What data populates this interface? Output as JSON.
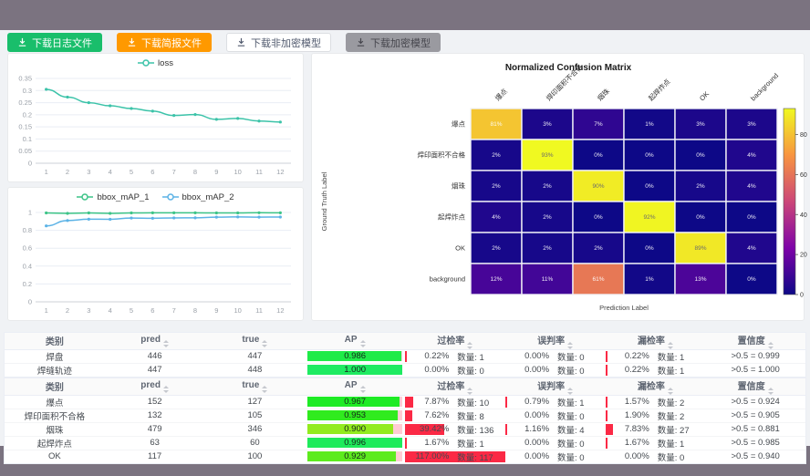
{
  "theme": {
    "top_band": "#7b7380",
    "content_bg": "#f0f2f5",
    "rate_bar_red": "#fb2945",
    "ap_track_pink": "#ffccd4"
  },
  "toolbar": {
    "buttons": [
      {
        "label": "下载日志文件",
        "icon": "download-icon",
        "bg": "#19be6b",
        "color": "#ffffff",
        "border": "#19be6b"
      },
      {
        "label": "下载简报文件",
        "icon": "download-icon",
        "bg": "#ff9900",
        "color": "#ffffff",
        "border": "#ff9900"
      },
      {
        "label": "下载非加密模型",
        "icon": "download-icon",
        "bg": "#ffffff",
        "color": "#515a6e",
        "border": "#dcdee2"
      },
      {
        "label": "下载加密模型",
        "icon": "download-icon",
        "bg": "#9a9aa0",
        "color": "#46464d",
        "border": "#9a9aa0"
      }
    ]
  },
  "chart_data": [
    {
      "type": "line",
      "title": "",
      "x": [
        1,
        2,
        3,
        4,
        5,
        6,
        7,
        8,
        9,
        10,
        11,
        12
      ],
      "ylim": [
        0,
        0.35
      ],
      "y_ticks": [
        0,
        0.05,
        0.1,
        0.15,
        0.2,
        0.25,
        0.3,
        0.35
      ],
      "y_tick_labels": [
        "0",
        "0.05",
        "0.1",
        "0.15",
        "0.2",
        "0.25",
        "0.3",
        "0.35"
      ],
      "grid": true,
      "legend_position": "top",
      "series": [
        {
          "name": "loss",
          "color": "#3cc3a9",
          "values": [
            0.305,
            0.273,
            0.25,
            0.237,
            0.226,
            0.215,
            0.197,
            0.201,
            0.181,
            0.185,
            0.174,
            0.17
          ]
        }
      ]
    },
    {
      "type": "line",
      "title": "",
      "x": [
        1,
        2,
        3,
        4,
        5,
        6,
        7,
        8,
        9,
        10,
        11,
        12
      ],
      "ylim": [
        0,
        1
      ],
      "y_ticks": [
        0,
        0.2,
        0.4,
        0.6,
        0.8,
        1
      ],
      "y_tick_labels": [
        "0",
        "0.2",
        "0.4",
        "0.6",
        "0.8",
        "1"
      ],
      "grid": true,
      "legend_position": "top",
      "series": [
        {
          "name": "bbox_mAP_1",
          "color": "#3cc487",
          "values": [
            0.995,
            0.99,
            0.995,
            0.99,
            0.995,
            0.996,
            0.996,
            0.996,
            0.995,
            0.995,
            0.997,
            0.996
          ]
        },
        {
          "name": "bbox_mAP_2",
          "color": "#5cb3e6",
          "values": [
            0.85,
            0.91,
            0.925,
            0.924,
            0.938,
            0.935,
            0.939,
            0.94,
            0.948,
            0.95,
            0.948,
            0.949
          ]
        }
      ]
    },
    {
      "type": "heatmap",
      "title": "Normalized Confusion Matrix",
      "xlabel": "Prediction Label",
      "ylabel": "Ground Truth Label",
      "labels": [
        "爆点",
        "焊印面积不合格",
        "烟珠",
        "起焊炸点",
        "OK",
        "background"
      ],
      "unit": "%",
      "vmax": 93,
      "colormap": "plasma",
      "colorbar_ticks": [
        0,
        20,
        40,
        60,
        80
      ],
      "matrix": [
        [
          81,
          3,
          7,
          1,
          3,
          3
        ],
        [
          2,
          93,
          0,
          0,
          0,
          4
        ],
        [
          2,
          2,
          90,
          0,
          2,
          4
        ],
        [
          4,
          2,
          0,
          92,
          0,
          0
        ],
        [
          2,
          2,
          2,
          0,
          89,
          4
        ],
        [
          12,
          11,
          61,
          1,
          13,
          0
        ]
      ]
    }
  ],
  "tables": [
    {
      "headers": [
        "类别",
        "pred",
        "true",
        "AP",
        "过检率",
        "误判率",
        "漏检率",
        "置信度"
      ],
      "rows": [
        {
          "name": "焊盘",
          "pred": "446",
          "gt": "447",
          "ap": "0.986",
          "rates": [
            {
              "pct": "0.22%",
              "count": "数量: 1",
              "bar": 0.22
            },
            {
              "pct": "0.00%",
              "count": "数量: 0",
              "bar": 0
            },
            {
              "pct": "0.22%",
              "count": "数量: 1",
              "bar": 0.22
            }
          ],
          "conf": ">0.5 = 0.999"
        },
        {
          "name": "焊缝轨迹",
          "pred": "447",
          "gt": "448",
          "ap": "1.000",
          "rates": [
            {
              "pct": "0.00%",
              "count": "数量: 0",
              "bar": 0
            },
            {
              "pct": "0.00%",
              "count": "数量: 0",
              "bar": 0
            },
            {
              "pct": "0.22%",
              "count": "数量: 1",
              "bar": 0.22
            }
          ],
          "conf": ">0.5 = 1.000"
        }
      ]
    },
    {
      "headers": [
        "类别",
        "pred",
        "true",
        "AP",
        "过检率",
        "误判率",
        "漏检率",
        "置信度"
      ],
      "rows": [
        {
          "name": "爆点",
          "pred": "152",
          "gt": "127",
          "ap": "0.967",
          "rates": [
            {
              "pct": "7.87%",
              "count": "数量: 10",
              "bar": 7.87
            },
            {
              "pct": "0.79%",
              "count": "数量: 1",
              "bar": 0.79
            },
            {
              "pct": "1.57%",
              "count": "数量: 2",
              "bar": 1.57
            }
          ],
          "conf": ">0.5 = 0.924"
        },
        {
          "name": "焊印面积不合格",
          "pred": "132",
          "gt": "105",
          "ap": "0.953",
          "rates": [
            {
              "pct": "7.62%",
              "count": "数量: 8",
              "bar": 7.62
            },
            {
              "pct": "0.00%",
              "count": "数量: 0",
              "bar": 0
            },
            {
              "pct": "1.90%",
              "count": "数量: 2",
              "bar": 1.9
            }
          ],
          "conf": ">0.5 = 0.905"
        },
        {
          "name": "烟珠",
          "pred": "479",
          "gt": "346",
          "ap": "0.900",
          "rates": [
            {
              "pct": "39.42%",
              "count": "数量: 136",
              "bar": 39.42
            },
            {
              "pct": "1.16%",
              "count": "数量: 4",
              "bar": 1.16
            },
            {
              "pct": "7.83%",
              "count": "数量: 27",
              "bar": 7.83
            }
          ],
          "conf": ">0.5 = 0.881"
        },
        {
          "name": "起焊炸点",
          "pred": "63",
          "gt": "60",
          "ap": "0.996",
          "rates": [
            {
              "pct": "1.67%",
              "count": "数量: 1",
              "bar": 1.67
            },
            {
              "pct": "0.00%",
              "count": "数量: 0",
              "bar": 0
            },
            {
              "pct": "1.67%",
              "count": "数量: 1",
              "bar": 1.67
            }
          ],
          "conf": ">0.5 = 0.985"
        },
        {
          "name": "OK",
          "pred": "117",
          "gt": "100",
          "ap": "0.929",
          "rates": [
            {
              "pct": "117.00%",
              "count": "数量: 117",
              "bar": 117
            },
            {
              "pct": "0.00%",
              "count": "数量: 0",
              "bar": 0
            },
            {
              "pct": "0.00%",
              "count": "数量: 0",
              "bar": 0
            }
          ],
          "conf": ">0.5 = 0.940"
        }
      ]
    }
  ]
}
